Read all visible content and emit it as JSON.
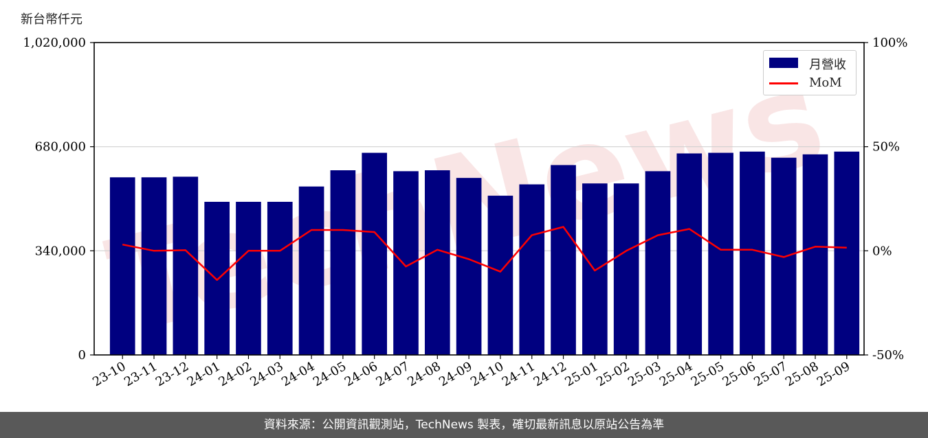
{
  "unit_label": "新台幣仟元",
  "footer_text": "資料來源：公開資訊觀測站，TechNews 製表，確切最新訊息以原站公告為準",
  "colors": {
    "bar": "#000080",
    "line": "#ff0000",
    "grid": "#d0d0d0",
    "watermark": "#f2c6c6"
  },
  "watermark": "TechNews",
  "chart_data": {
    "type": "bar",
    "categories": [
      "23-10",
      "23-11",
      "23-12",
      "24-01",
      "24-02",
      "24-03",
      "24-04",
      "24-05",
      "24-06",
      "24-07",
      "24-08",
      "24-09",
      "24-10",
      "24-11",
      "24-12",
      "25-01",
      "25-02",
      "25-03",
      "25-04",
      "25-05",
      "25-06",
      "25-07",
      "25-08",
      "25-09"
    ],
    "series": [
      {
        "name": "月營收",
        "axis": "left",
        "type": "bar",
        "values": [
          580000,
          580000,
          582000,
          500000,
          500000,
          500000,
          550000,
          603000,
          660000,
          600000,
          603000,
          578000,
          520000,
          557000,
          620000,
          560000,
          560000,
          600000,
          658000,
          660000,
          664000,
          644000,
          655000,
          664000
        ]
      },
      {
        "name": "MoM",
        "axis": "right",
        "type": "line",
        "values": [
          3,
          0,
          0.3,
          -14,
          0,
          0,
          10,
          10,
          9,
          -7.5,
          0.5,
          -4,
          -10,
          7.5,
          11.5,
          -9.5,
          0,
          7.5,
          10.5,
          0.5,
          0.5,
          -3,
          2,
          1.5
        ]
      }
    ],
    "left_axis": {
      "ylim": [
        0,
        1020000
      ],
      "ticks": [
        0,
        340000,
        680000,
        1020000
      ],
      "tick_labels": [
        "0",
        "340,000",
        "680,000",
        "1,020,000"
      ]
    },
    "right_axis": {
      "ylim": [
        -50,
        100
      ],
      "ticks": [
        -50,
        0,
        50,
        100
      ],
      "tick_labels": [
        "-50%",
        "0%",
        "50%",
        "100%"
      ]
    },
    "grid": true,
    "legend_position": "top-right"
  }
}
